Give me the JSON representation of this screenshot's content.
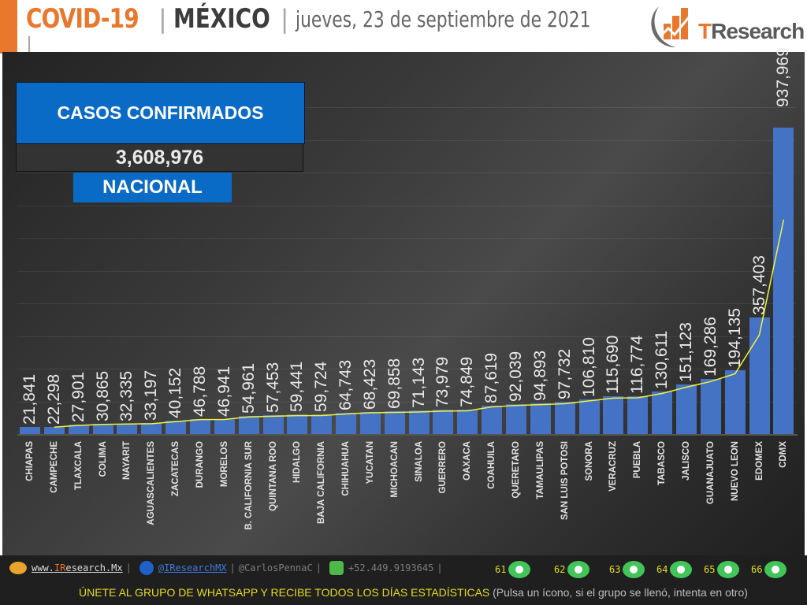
{
  "header": {
    "covid": "COVID-19",
    "sep": "|",
    "country": "MÉXICO",
    "date": "jueves, 23 de septiembre de 2021",
    "logo_t": "T",
    "logo_rest": "Research"
  },
  "kpi": {
    "title": "CASOS CONFIRMADOS",
    "value": "3,608,976",
    "scope": "NACIONAL"
  },
  "colors": {
    "accent_orange": "#e9772c",
    "bar_blue": "#4472c4",
    "kpi_blue": "#0a6bc7",
    "trend_yellow": "#f2f23a",
    "footer_yellow": "#e5dc1f"
  },
  "chart_data": {
    "type": "bar",
    "title": "CASOS CONFIRMADOS",
    "xlabel": "",
    "ylabel": "",
    "ylim": [
      0,
      1000000
    ],
    "grid": true,
    "legend": "none",
    "trendline": true,
    "categories": [
      "CHIAPAS",
      "CAMPECHE",
      "TLAXCALA",
      "COLIMA",
      "NAYARIT",
      "AGUASCALIENTES",
      "ZACATECAS",
      "DURANGO",
      "MORELOS",
      "B. CALIFORNIA SUR",
      "QUINTANA ROO",
      "HIDALGO",
      "BAJA CALIFORNIA",
      "CHIHUAHUA",
      "YUCATAN",
      "MICHOACAN",
      "SINALOA",
      "GUERRERO",
      "OAXACA",
      "COAHUILA",
      "QUERETARO",
      "TAMAULIPAS",
      "SAN LUIS POTOSI",
      "SONORA",
      "VERACRUZ",
      "PUEBLA",
      "TABASCO",
      "JALISCO",
      "GUANAJUATO",
      "NUEVO LEON",
      "EDOMEX",
      "CDMX"
    ],
    "values": [
      21841,
      22298,
      27901,
      30865,
      32335,
      33197,
      40152,
      46788,
      46941,
      54961,
      57453,
      59441,
      59724,
      64743,
      68423,
      69858,
      71143,
      73979,
      74849,
      87619,
      92039,
      94893,
      97732,
      106810,
      115690,
      116774,
      130611,
      151123,
      169286,
      194135,
      357403,
      937969
    ],
    "labels": [
      "21,841",
      "22,298",
      "27,901",
      "30,865",
      "32,335",
      "33,197",
      "40,152",
      "46,788",
      "46,941",
      "54,961",
      "57,453",
      "59,441",
      "59,724",
      "64,743",
      "68,423",
      "69,858",
      "71,143",
      "73,979",
      "74,849",
      "87,619",
      "92,039",
      "94,893",
      "97,732",
      "106,810",
      "115,690",
      "116,774",
      "130,611",
      "151,123",
      "169,286",
      "194,135",
      "357,403",
      "937,969"
    ]
  },
  "footer": {
    "website_prefix": "www.",
    "website_ir": "IR",
    "website_rest": "esearch.Mx",
    "twitter": "@IResearchMX",
    "personal": "@CarlosPennaC",
    "phone": "+52.449.9193645",
    "pipe": "|",
    "whatsapp_groups": [
      "61",
      "62",
      "63",
      "64",
      "65",
      "66"
    ],
    "cta": "ÚNETE AL GRUPO DE WHATSAPP Y RECIBE TODOS LOS DÍAS ESTADÍSTICAS",
    "hint": "(Pulsa un ícono, si el grupo se llenó, intenta en otro)"
  }
}
